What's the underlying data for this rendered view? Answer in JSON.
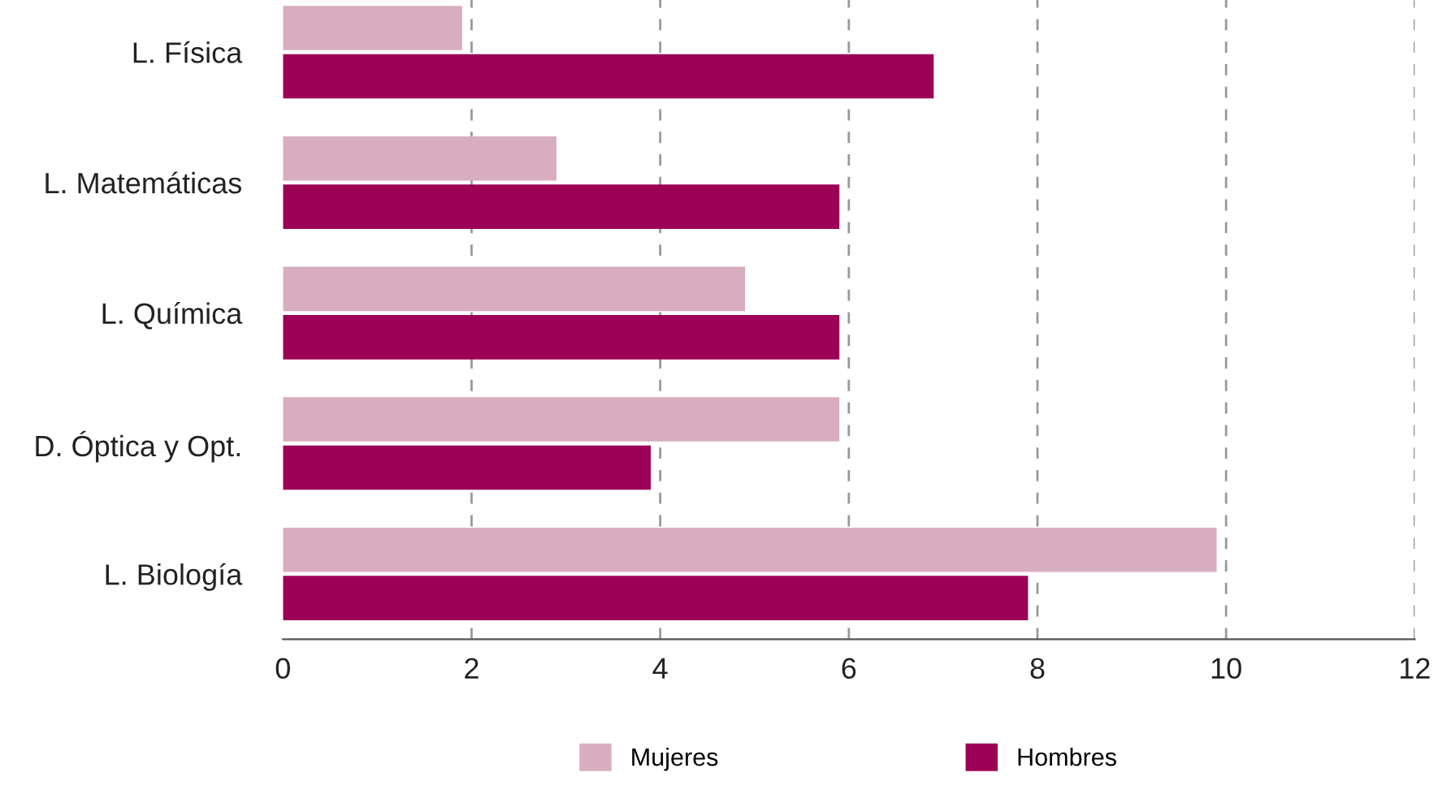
{
  "chart_data": {
    "type": "bar",
    "orientation": "horizontal",
    "categories": [
      "L. Física",
      "L. Matemáticas",
      "L. Química",
      "D. Óptica y Opt.",
      "L. Biología"
    ],
    "series": [
      {
        "name": "Mujeres",
        "color": "#d9adc0",
        "values": [
          1.9,
          2.9,
          4.9,
          5.9,
          9.9
        ]
      },
      {
        "name": "Hombres",
        "color": "#9c0056",
        "values": [
          6.9,
          5.9,
          5.9,
          3.9,
          7.9
        ]
      }
    ],
    "xlim": [
      0,
      12
    ],
    "xticks": [
      0,
      2,
      4,
      6,
      8,
      10,
      12
    ],
    "grid": "x",
    "legend": "bottom"
  }
}
